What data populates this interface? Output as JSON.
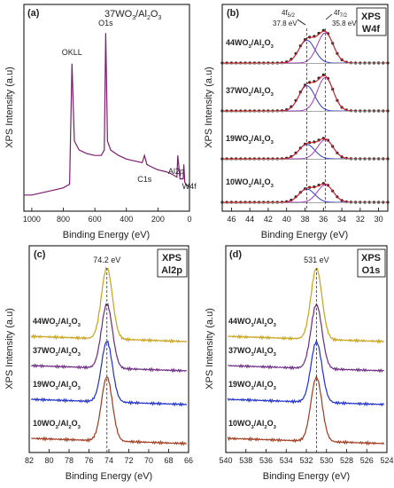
{
  "chart_data": [
    {
      "type": "line",
      "panel": "(a)",
      "title": "37WO3/Al2O3",
      "xlabel": "Binding Energy (eV)",
      "ylabel": "XPS Intensity (a.u)",
      "xlim": [
        1050,
        0
      ],
      "xticks": [
        1000,
        800,
        600,
        400,
        200,
        0
      ],
      "annotations": [
        {
          "label": "OKLL",
          "x": 745
        },
        {
          "label": "O1s",
          "x": 531
        },
        {
          "label": "C1s",
          "x": 285
        },
        {
          "label": "Al2p",
          "x": 74
        },
        {
          "label": "W4f",
          "x": 36
        }
      ],
      "series": [
        {
          "x": [
            1050,
            1000,
            950,
            900,
            850,
            800,
            760,
            745,
            730,
            700,
            650,
            600,
            560,
            540,
            531,
            520,
            500,
            450,
            400,
            350,
            300,
            285,
            270,
            250,
            200,
            150,
            120,
            100,
            80,
            74,
            60,
            40,
            36,
            30,
            10,
            0
          ],
          "y": [
            0.05,
            0.05,
            0.06,
            0.07,
            0.08,
            0.09,
            0.11,
            0.78,
            0.35,
            0.3,
            0.28,
            0.27,
            0.27,
            0.3,
            0.95,
            0.35,
            0.3,
            0.27,
            0.25,
            0.24,
            0.23,
            0.27,
            0.22,
            0.21,
            0.19,
            0.18,
            0.17,
            0.16,
            0.15,
            0.27,
            0.14,
            0.14,
            0.22,
            0.12,
            0.1,
            0.1
          ]
        }
      ]
    },
    {
      "type": "line",
      "panel": "(b)",
      "tag_top": "XPS",
      "tag_bottom": "W4f",
      "xlabel": "Binding Energy (eV)",
      "ylabel": "XPS Intensity (a.u)",
      "xlim": [
        47,
        29
      ],
      "xticks": [
        46,
        44,
        42,
        40,
        38,
        36,
        34,
        32,
        30
      ],
      "annotations": [
        {
          "label": "4f5/2",
          "energy": "37.8 eV",
          "x": 37.8
        },
        {
          "label": "4f7/2",
          "energy": "35.8 eV",
          "x": 35.8
        }
      ],
      "series": [
        {
          "name": "44WO3/Al2O3",
          "peaks": [
            37.8,
            35.8
          ]
        },
        {
          "name": "37WO3/Al2O3",
          "peaks": [
            37.8,
            35.8
          ]
        },
        {
          "name": "19WO3/Al2O3",
          "peaks": [
            37.8,
            35.8
          ]
        },
        {
          "name": "10WO3/Al2O3",
          "peaks": [
            37.8,
            35.8
          ]
        }
      ]
    },
    {
      "type": "line",
      "panel": "(c)",
      "tag_top": "XPS",
      "tag_bottom": "Al2p",
      "xlabel": "Binding Energy (eV)",
      "ylabel": "XPS Intensity (a.u)",
      "xlim": [
        82,
        66
      ],
      "xticks": [
        82,
        80,
        78,
        76,
        74,
        72,
        70,
        68,
        66
      ],
      "annotations": [
        {
          "label": "74.2 eV",
          "x": 74.2
        }
      ],
      "series": [
        {
          "name": "44WO3/Al2O3",
          "peak": 74.2,
          "color": "#c9a21a"
        },
        {
          "name": "37WO3/Al2O3",
          "peak": 74.2,
          "color": "#6b2a82"
        },
        {
          "name": "19WO3/Al2O3",
          "peak": 74.2,
          "color": "#1f2fd0"
        },
        {
          "name": "10WO3/Al2O3",
          "peak": 74.2,
          "color": "#a23a1e"
        }
      ]
    },
    {
      "type": "line",
      "panel": "(d)",
      "tag_top": "XPS",
      "tag_bottom": "O1s",
      "xlabel": "Binding Energy (eV)",
      "ylabel": "XPS Intensity (a.u)",
      "xlim": [
        540,
        524
      ],
      "xticks": [
        540,
        538,
        536,
        534,
        532,
        530,
        528,
        526,
        524
      ],
      "annotations": [
        {
          "label": "531 eV",
          "x": 531
        }
      ],
      "series": [
        {
          "name": "44WO3/Al2O3",
          "peak": 531,
          "color": "#c9a21a"
        },
        {
          "name": "37WO3/Al2O3",
          "peak": 531,
          "color": "#6b2a82"
        },
        {
          "name": "19WO3/Al2O3",
          "peak": 531,
          "color": "#1f2fd0"
        },
        {
          "name": "10WO3/Al2O3",
          "peak": 531,
          "color": "#a23a1e"
        }
      ]
    }
  ]
}
